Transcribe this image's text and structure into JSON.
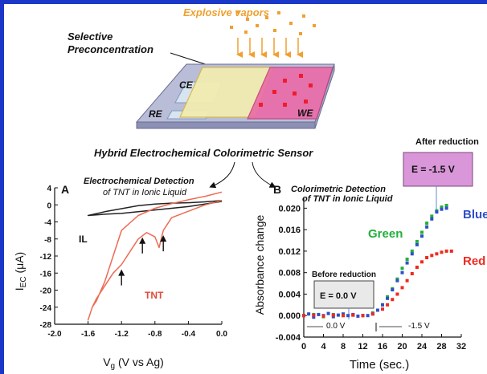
{
  "colors": {
    "frame": "#1a37c8",
    "vapor_text": "#f0a030",
    "il_curve": "#222222",
    "tnt_curve": "#ee6a55",
    "tnt_label": "#e04a3a",
    "green": "#22b03a",
    "blue": "#2f4fc8",
    "red": "#ee2a20",
    "after_box": "#d996d8"
  },
  "top": {
    "vapors_label": "Explosive vapors",
    "preconc_label_1": "Selective",
    "preconc_label_2": "Preconcentration",
    "electrodes": [
      "CE",
      "RE",
      "WE"
    ],
    "sensor_title": "Hybrid Electrochemical Colorimetric Sensor"
  },
  "panel_a": {
    "letter": "A",
    "title_1": "Electrochemical Detection",
    "title_2": "of TNT in Ionic Liquid",
    "ylabel": "I",
    "ylabel_sub": "EC",
    "ylabel_unit": " (μA)",
    "xlabel": "V",
    "xlabel_sub": "g",
    "xlabel_unit": " (V vs Ag)",
    "label_il": "IL",
    "label_tnt": "TNT"
  },
  "panel_b": {
    "letter": "B",
    "title_1": "Colorimetric Detection",
    "title_2": "of TNT in Ionic Liquid",
    "ylabel": "Absorbance change",
    "xlabel": "Time (sec.)",
    "after_title": "After reduction",
    "after_value": "E = -1.5 V",
    "before_title": "Before reduction",
    "before_value": "E = 0.0 V",
    "phase1": "0.0 V",
    "phase2": "-1.5 V"
  },
  "chart_data": [
    {
      "type": "line",
      "xlabel": "Vg (V vs Ag)",
      "ylabel": "IEC (μA)",
      "xlim": [
        -2.0,
        0.0
      ],
      "ylim": [
        -28,
        4
      ],
      "xticks": [
        "-2.0",
        "-1.6",
        "-1.2",
        "-0.8",
        "-0.4",
        "0.0"
      ],
      "yticks": [
        "4",
        "0",
        "-4",
        "-8",
        "-12",
        "-16",
        "-20",
        "-24",
        "-28"
      ],
      "series": [
        {
          "name": "IL",
          "x": [
            0.0,
            -0.2,
            -0.4,
            -0.6,
            -0.8,
            -1.0,
            -1.2,
            -1.4,
            -1.6,
            -1.4,
            -1.2,
            -1.0,
            -0.8,
            -0.6,
            -0.4,
            -0.2,
            0.0
          ],
          "y": [
            0.8,
            0.2,
            -0.4,
            -0.8,
            -1.2,
            -1.6,
            -2.0,
            -2.2,
            -2.5,
            -1.6,
            -0.9,
            -0.2,
            0.2,
            0.4,
            0.5,
            0.7,
            1.0
          ]
        },
        {
          "name": "TNT",
          "x": [
            0.0,
            -0.2,
            -0.4,
            -0.6,
            -0.7,
            -0.75,
            -0.8,
            -0.9,
            -1.0,
            -1.1,
            -1.2,
            -1.3,
            -1.4,
            -1.5,
            -1.55,
            -1.6,
            -1.55,
            -1.5,
            -1.4,
            -1.3,
            -1.2,
            -1.0,
            -0.8,
            -0.6,
            -0.4,
            -0.2,
            0.0
          ],
          "y": [
            1.0,
            0.0,
            -1.5,
            -3.0,
            -6.0,
            -10.0,
            -7.5,
            -6.5,
            -8.0,
            -11.0,
            -14.0,
            -16.0,
            -19.0,
            -22.0,
            -24.0,
            -27.0,
            -24.0,
            -22.5,
            -18.0,
            -12.0,
            -6.0,
            -2.5,
            -0.8,
            0.3,
            1.2,
            2.0,
            3.0
          ]
        }
      ],
      "arrows_at": [
        -1.2,
        -0.95,
        -0.7
      ]
    },
    {
      "type": "scatter",
      "xlabel": "Time (sec.)",
      "ylabel": "Absorbance change",
      "xlim": [
        0,
        32
      ],
      "ylim": [
        -0.004,
        0.022
      ],
      "xticks": [
        "0",
        "4",
        "8",
        "12",
        "16",
        "20",
        "24",
        "28",
        "32"
      ],
      "yticks": [
        "-0.004",
        "0.000",
        "0.004",
        "0.008",
        "0.012",
        "0.016",
        "0.020"
      ],
      "series": [
        {
          "name": "Green",
          "x": [
            0,
            2,
            4,
            6,
            8,
            10,
            12,
            14,
            16,
            17,
            18,
            19,
            20,
            21,
            22,
            23,
            24,
            25,
            26,
            27,
            28,
            29
          ],
          "y": [
            0.0,
            0.0002,
            -0.0002,
            0.0002,
            0.0,
            0.0001,
            0.0,
            0.0005,
            0.002,
            0.0035,
            0.005,
            0.0068,
            0.0088,
            0.0105,
            0.012,
            0.0138,
            0.0155,
            0.0172,
            0.0185,
            0.0195,
            0.0202,
            0.0205
          ]
        },
        {
          "name": "Blue",
          "x": [
            0,
            1,
            2,
            3,
            4,
            5,
            6,
            7,
            8,
            9,
            10,
            11,
            12,
            13,
            14,
            15,
            16,
            17,
            18,
            19,
            20,
            21,
            22,
            23,
            24,
            25,
            26,
            27,
            28,
            29
          ],
          "y": [
            0.0,
            0.0003,
            -0.0003,
            0.0002,
            0.0,
            0.0004,
            -0.0002,
            0.0001,
            0.0003,
            0.0,
            0.0002,
            -0.0001,
            0.0,
            0.0,
            0.0003,
            0.001,
            0.002,
            0.0032,
            0.0048,
            0.0065,
            0.008,
            0.0098,
            0.0115,
            0.0132,
            0.0148,
            0.0165,
            0.018,
            0.0193,
            0.0198,
            0.02
          ]
        },
        {
          "name": "Red",
          "x": [
            0,
            2,
            4,
            6,
            8,
            10,
            12,
            14,
            16,
            17,
            18,
            19,
            20,
            21,
            22,
            23,
            24,
            25,
            26,
            27,
            28,
            29,
            30
          ],
          "y": [
            0.0,
            0.0001,
            -0.0001,
            0.0001,
            0.0,
            0.0001,
            0.0,
            0.0003,
            0.0012,
            0.002,
            0.003,
            0.004,
            0.0052,
            0.0065,
            0.0078,
            0.009,
            0.01,
            0.0108,
            0.0112,
            0.0115,
            0.0118,
            0.012,
            0.012
          ]
        }
      ]
    }
  ]
}
